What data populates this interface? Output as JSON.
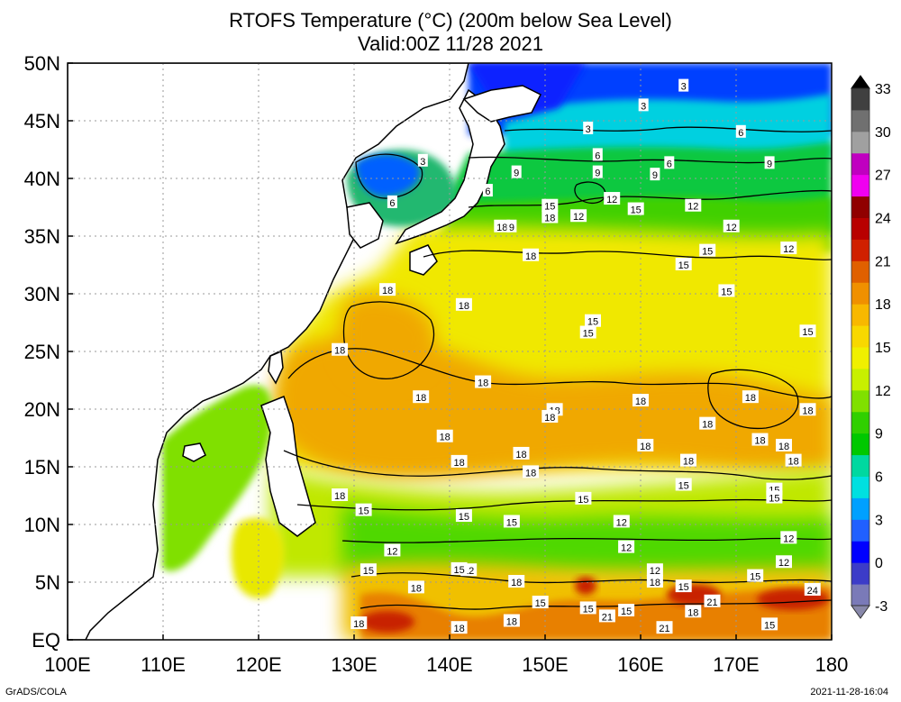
{
  "title_line1": "RTOFS Temperature (°C) (200m below Sea Level)",
  "title_line2": "Valid:00Z 11/28 2021",
  "x_ticks": [
    "100E",
    "110E",
    "120E",
    "130E",
    "140E",
    "150E",
    "160E",
    "170E",
    "180"
  ],
  "y_ticks": [
    "EQ",
    "5N",
    "10N",
    "15N",
    "20N",
    "25N",
    "30N",
    "35N",
    "40N",
    "45N",
    "50N"
  ],
  "colorbar": {
    "labels": [
      "-3",
      "0",
      "3",
      "6",
      "9",
      "12",
      "15",
      "18",
      "21",
      "24",
      "27",
      "30",
      "33"
    ],
    "colors": [
      "#7a7ab8",
      "#3c3cc8",
      "#0000ff",
      "#2060ff",
      "#00a0ff",
      "#00e0e0",
      "#00d8a0",
      "#00c800",
      "#30d000",
      "#80e000",
      "#c8f000",
      "#f0f000",
      "#f8d800",
      "#f8b800",
      "#f09000",
      "#e06000",
      "#d02000",
      "#b80000",
      "#900000",
      "#f000f0",
      "#c000c0",
      "#a0a0a0",
      "#707070",
      "#404040"
    ]
  },
  "map": {
    "lon_range": [
      100,
      180
    ],
    "lat_range": [
      0,
      50
    ],
    "contour_interval": 3,
    "contour_labels": [
      {
        "text": "3",
        "lon": 164.5,
        "lat": 48.0
      },
      {
        "text": "3",
        "lon": 160.3,
        "lat": 46.3
      },
      {
        "text": "3",
        "lon": 154.5,
        "lat": 44.3
      },
      {
        "text": "3",
        "lon": 137.2,
        "lat": 41.5
      },
      {
        "text": "6",
        "lon": 170.5,
        "lat": 44.0
      },
      {
        "text": "6",
        "lon": 155.5,
        "lat": 42.0
      },
      {
        "text": "6",
        "lon": 163.0,
        "lat": 41.3
      },
      {
        "text": "6",
        "lon": 144.0,
        "lat": 38.9
      },
      {
        "text": "6",
        "lon": 134.0,
        "lat": 37.9
      },
      {
        "text": "9",
        "lon": 147.0,
        "lat": 40.5
      },
      {
        "text": "9",
        "lon": 155.5,
        "lat": 40.5
      },
      {
        "text": "9",
        "lon": 161.5,
        "lat": 40.3
      },
      {
        "text": "9",
        "lon": 173.5,
        "lat": 41.3
      },
      {
        "text": "12",
        "lon": 157.0,
        "lat": 38.2
      },
      {
        "text": "12",
        "lon": 153.5,
        "lat": 36.7
      },
      {
        "text": "12",
        "lon": 165.5,
        "lat": 37.6
      },
      {
        "text": "12",
        "lon": 169.5,
        "lat": 35.8
      },
      {
        "text": "12",
        "lon": 175.5,
        "lat": 33.9
      },
      {
        "text": "15",
        "lon": 159.5,
        "lat": 37.3
      },
      {
        "text": "15",
        "lon": 150.5,
        "lat": 37.6
      },
      {
        "text": "15",
        "lon": 167.0,
        "lat": 33.7
      },
      {
        "text": "15",
        "lon": 164.5,
        "lat": 32.5
      },
      {
        "text": "15",
        "lon": 169.0,
        "lat": 30.2
      },
      {
        "text": "15",
        "lon": 155.0,
        "lat": 27.6
      },
      {
        "text": "15",
        "lon": 154.5,
        "lat": 26.6
      },
      {
        "text": "15",
        "lon": 177.5,
        "lat": 26.7
      },
      {
        "text": "18",
        "lon": 145.5,
        "lat": 35.8
      },
      {
        "text": "9",
        "lon": 146.5,
        "lat": 35.8
      },
      {
        "text": "18",
        "lon": 150.5,
        "lat": 36.6
      },
      {
        "text": "18",
        "lon": 148.5,
        "lat": 33.3
      },
      {
        "text": "18",
        "lon": 133.5,
        "lat": 30.3
      },
      {
        "text": "18",
        "lon": 141.5,
        "lat": 29.0
      },
      {
        "text": "18",
        "lon": 128.5,
        "lat": 25.1
      },
      {
        "text": "18",
        "lon": 143.5,
        "lat": 22.3
      },
      {
        "text": "18",
        "lon": 137.0,
        "lat": 21.0
      },
      {
        "text": "18",
        "lon": 160.0,
        "lat": 20.7
      },
      {
        "text": "18",
        "lon": 151.0,
        "lat": 19.9
      },
      {
        "text": "18",
        "lon": 150.5,
        "lat": 19.3
      },
      {
        "text": "18",
        "lon": 171.5,
        "lat": 21.0
      },
      {
        "text": "18",
        "lon": 177.5,
        "lat": 19.9
      },
      {
        "text": "18",
        "lon": 167.0,
        "lat": 18.7
      },
      {
        "text": "18",
        "lon": 172.5,
        "lat": 17.3
      },
      {
        "text": "18",
        "lon": 175.0,
        "lat": 16.8
      },
      {
        "text": "18",
        "lon": 176.0,
        "lat": 15.5
      },
      {
        "text": "18",
        "lon": 139.5,
        "lat": 17.6
      },
      {
        "text": "18",
        "lon": 160.5,
        "lat": 16.8
      },
      {
        "text": "18",
        "lon": 147.5,
        "lat": 16.1
      },
      {
        "text": "18",
        "lon": 141.0,
        "lat": 15.4
      },
      {
        "text": "18",
        "lon": 165.0,
        "lat": 15.5
      },
      {
        "text": "18",
        "lon": 148.5,
        "lat": 14.5
      },
      {
        "text": "18",
        "lon": 128.5,
        "lat": 12.5
      },
      {
        "text": "15",
        "lon": 164.5,
        "lat": 13.4
      },
      {
        "text": "15",
        "lon": 174.0,
        "lat": 13.0
      },
      {
        "text": "15",
        "lon": 174.0,
        "lat": 12.3
      },
      {
        "text": "15",
        "lon": 154.0,
        "lat": 12.2
      },
      {
        "text": "15",
        "lon": 131.0,
        "lat": 11.2
      },
      {
        "text": "15",
        "lon": 141.5,
        "lat": 10.7
      },
      {
        "text": "15",
        "lon": 146.5,
        "lat": 10.2
      },
      {
        "text": "12",
        "lon": 158.0,
        "lat": 10.2
      },
      {
        "text": "12",
        "lon": 175.5,
        "lat": 8.8
      },
      {
        "text": "12",
        "lon": 134.0,
        "lat": 7.7
      },
      {
        "text": "12",
        "lon": 158.5,
        "lat": 8.0
      },
      {
        "text": "12",
        "lon": 175.0,
        "lat": 6.7
      },
      {
        "text": "12",
        "lon": 142.0,
        "lat": 6.0
      },
      {
        "text": "12",
        "lon": 161.5,
        "lat": 6.0
      },
      {
        "text": "15",
        "lon": 131.5,
        "lat": 6.0
      },
      {
        "text": "15",
        "lon": 141.0,
        "lat": 6.1
      },
      {
        "text": "15",
        "lon": 172.0,
        "lat": 5.5
      },
      {
        "text": "15",
        "lon": 164.5,
        "lat": 4.6
      },
      {
        "text": "15",
        "lon": 149.5,
        "lat": 3.2
      },
      {
        "text": "15",
        "lon": 154.5,
        "lat": 2.7
      },
      {
        "text": "15",
        "lon": 158.5,
        "lat": 2.5
      },
      {
        "text": "15",
        "lon": 173.5,
        "lat": 1.3
      },
      {
        "text": "18",
        "lon": 161.5,
        "lat": 5.0
      },
      {
        "text": "18",
        "lon": 147.0,
        "lat": 5.0
      },
      {
        "text": "18",
        "lon": 136.5,
        "lat": 4.5
      },
      {
        "text": "18",
        "lon": 165.5,
        "lat": 2.4
      },
      {
        "text": "18",
        "lon": 146.5,
        "lat": 1.6
      },
      {
        "text": "18",
        "lon": 130.5,
        "lat": 1.4
      },
      {
        "text": "18",
        "lon": 141.0,
        "lat": 1.0
      },
      {
        "text": "21",
        "lon": 167.5,
        "lat": 3.3
      },
      {
        "text": "21",
        "lon": 156.5,
        "lat": 2.0
      },
      {
        "text": "21",
        "lon": 162.5,
        "lat": 1.0
      },
      {
        "text": "24",
        "lon": 178.0,
        "lat": 4.3
      }
    ]
  },
  "footer_left": "GrADS/COLA",
  "footer_right": "2021-11-28-16:04"
}
